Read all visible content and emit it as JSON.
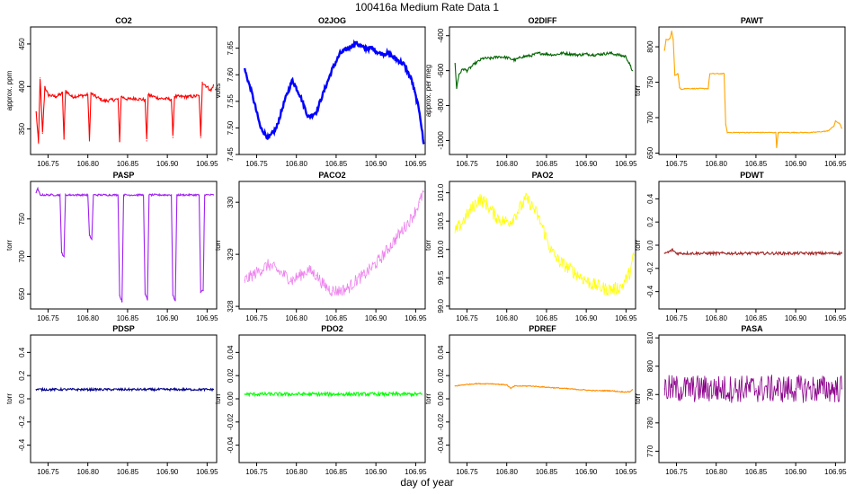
{
  "title": "100416a   Medium Rate Data 1",
  "xlabel": "day of year",
  "chart_data": [
    {
      "type": "line",
      "title": "CO2",
      "ylabel": "approx. ppm",
      "color": "#ff0000",
      "xlim": [
        106.728,
        106.962
      ],
      "ylim": [
        320,
        470
      ],
      "xticks": [
        106.75,
        106.8,
        106.85,
        106.9,
        106.95
      ],
      "yticks": [
        350,
        400,
        450
      ],
      "series": [
        {
          "x": [
            106.735,
            106.738,
            106.74,
            106.743,
            106.746,
            106.75,
            106.76,
            106.768,
            106.77,
            106.772,
            106.78,
            106.8,
            106.802,
            106.804,
            106.81,
            106.82,
            106.838,
            106.84,
            106.842,
            106.85,
            106.86,
            106.872,
            106.874,
            106.876,
            106.89,
            106.905,
            106.907,
            106.909,
            106.93,
            106.94,
            106.942,
            106.944,
            106.955,
            106.958
          ],
          "y": [
            370,
            333,
            410,
            345,
            400,
            390,
            388,
            392,
            338,
            395,
            388,
            390,
            336,
            392,
            388,
            383,
            385,
            336,
            388,
            385,
            386,
            384,
            336,
            390,
            386,
            385,
            340,
            388,
            388,
            389,
            340,
            405,
            395,
            402
          ]
        }
      ]
    },
    {
      "type": "line",
      "title": "O2JOG",
      "ylabel": "volts",
      "color": "#0000ff",
      "xlim": [
        106.728,
        106.962
      ],
      "ylim": [
        7.45,
        7.69
      ],
      "xticks": [
        106.75,
        106.8,
        106.85,
        106.9,
        106.95
      ],
      "yticks": [
        7.45,
        7.5,
        7.55,
        7.6,
        7.65
      ],
      "series": [
        {
          "x": [
            106.735,
            106.745,
            106.755,
            106.765,
            106.775,
            106.785,
            106.795,
            106.805,
            106.815,
            106.825,
            106.835,
            106.845,
            106.855,
            106.865,
            106.875,
            106.885,
            106.895,
            106.905,
            106.915,
            106.925,
            106.935,
            106.945,
            106.955,
            106.96
          ],
          "y": [
            7.61,
            7.56,
            7.5,
            7.48,
            7.5,
            7.55,
            7.59,
            7.56,
            7.52,
            7.53,
            7.57,
            7.61,
            7.64,
            7.65,
            7.66,
            7.65,
            7.65,
            7.64,
            7.64,
            7.63,
            7.62,
            7.59,
            7.53,
            7.47
          ]
        }
      ]
    },
    {
      "type": "line",
      "title": "O2DIFF",
      "ylabel": "approx. per meg",
      "color": "#006400",
      "xlim": [
        106.728,
        106.962
      ],
      "ylim": [
        -1080,
        -350
      ],
      "xticks": [
        106.75,
        106.8,
        106.85,
        106.9,
        106.95
      ],
      "yticks": [
        -1000,
        -800,
        -600,
        -400
      ],
      "series": [
        {
          "x": [
            106.735,
            106.737,
            106.74,
            106.745,
            106.75,
            106.76,
            106.77,
            106.78,
            106.79,
            106.8,
            106.81,
            106.82,
            106.83,
            106.84,
            106.85,
            106.86,
            106.87,
            106.88,
            106.89,
            106.9,
            106.91,
            106.92,
            106.93,
            106.94,
            106.95,
            106.955,
            106.958
          ],
          "y": [
            -560,
            -700,
            -620,
            -590,
            -600,
            -560,
            -530,
            -530,
            -520,
            -525,
            -540,
            -520,
            -515,
            -500,
            -505,
            -510,
            -500,
            -505,
            -510,
            -505,
            -510,
            -505,
            -500,
            -510,
            -520,
            -570,
            -600
          ]
        }
      ]
    },
    {
      "type": "line",
      "title": "PAWT",
      "ylabel": "torr",
      "color": "#ffa500",
      "xlim": [
        106.728,
        106.962
      ],
      "ylim": [
        648,
        828
      ],
      "xticks": [
        106.75,
        106.8,
        106.85,
        106.9,
        106.95
      ],
      "yticks": [
        650,
        700,
        750,
        800
      ],
      "series": [
        {
          "x": [
            106.735,
            106.737,
            106.74,
            106.742,
            106.744,
            106.746,
            106.748,
            106.752,
            106.754,
            106.756,
            106.76,
            106.77,
            106.79,
            106.792,
            106.794,
            106.81,
            106.812,
            106.814,
            106.83,
            106.85,
            106.875,
            106.876,
            106.878,
            106.9,
            106.92,
            106.94,
            106.948,
            106.95,
            106.955,
            106.958
          ],
          "y": [
            795,
            810,
            810,
            812,
            822,
            810,
            760,
            762,
            742,
            740,
            741,
            741,
            741,
            762,
            762,
            762,
            690,
            679,
            679,
            679,
            679,
            658,
            679,
            679,
            679,
            681,
            688,
            695,
            692,
            685
          ]
        }
      ]
    },
    {
      "type": "line",
      "title": "PASP",
      "ylabel": "torr",
      "color": "#a020f0",
      "xlim": [
        106.728,
        106.962
      ],
      "ylim": [
        630,
        800
      ],
      "xticks": [
        106.75,
        106.8,
        106.85,
        106.9,
        106.95
      ],
      "yticks": [
        650,
        700,
        750
      ],
      "series": [
        {
          "x": [
            106.735,
            106.737,
            106.74,
            106.765,
            106.767,
            106.77,
            106.772,
            106.8,
            106.802,
            106.805,
            106.807,
            106.838,
            106.84,
            106.843,
            106.845,
            106.87,
            106.872,
            106.875,
            106.877,
            106.905,
            106.907,
            106.91,
            106.912,
            106.94,
            106.942,
            106.945,
            106.947,
            106.958
          ],
          "y": [
            785,
            790,
            782,
            782,
            705,
            700,
            782,
            782,
            728,
            723,
            782,
            782,
            648,
            640,
            782,
            782,
            650,
            642,
            782,
            782,
            648,
            641,
            782,
            782,
            652,
            655,
            782,
            782
          ]
        }
      ]
    },
    {
      "type": "line",
      "title": "PACO2",
      "ylabel": "torr",
      "color": "#ee82ee",
      "xlim": [
        106.728,
        106.962
      ],
      "ylim": [
        327.95,
        330.4
      ],
      "xticks": [
        106.75,
        106.8,
        106.85,
        106.9,
        106.95
      ],
      "yticks": [
        328.0,
        329.0,
        330.0
      ],
      "series": [
        {
          "x": [
            106.735,
            106.745,
            106.755,
            106.765,
            106.775,
            106.785,
            106.795,
            106.805,
            106.815,
            106.825,
            106.835,
            106.845,
            106.855,
            106.865,
            106.875,
            106.885,
            106.895,
            106.905,
            106.915,
            106.925,
            106.935,
            106.945,
            106.955,
            106.96
          ],
          "y": [
            328.5,
            328.6,
            328.7,
            328.8,
            328.7,
            328.6,
            328.5,
            328.6,
            328.7,
            328.6,
            328.4,
            328.3,
            328.3,
            328.35,
            328.5,
            328.6,
            328.75,
            328.9,
            329.1,
            329.3,
            329.5,
            329.7,
            330.0,
            330.2
          ]
        }
      ]
    },
    {
      "type": "line",
      "title": "PAO2",
      "ylabel": "torr",
      "color": "#ffff00",
      "xlim": [
        106.728,
        106.962
      ],
      "ylim": [
        98.95,
        101.2
      ],
      "xticks": [
        106.75,
        106.8,
        106.85,
        106.9,
        106.95
      ],
      "yticks": [
        99.0,
        99.5,
        100.0,
        100.5,
        101.0
      ],
      "series": [
        {
          "x": [
            106.735,
            106.745,
            106.755,
            106.765,
            106.775,
            106.785,
            106.795,
            106.805,
            106.815,
            106.825,
            106.835,
            106.845,
            106.855,
            106.865,
            106.875,
            106.885,
            106.895,
            106.905,
            106.915,
            106.925,
            106.935,
            106.945,
            106.955,
            106.96
          ],
          "y": [
            100.3,
            100.5,
            100.7,
            100.9,
            100.8,
            100.6,
            100.5,
            100.5,
            100.7,
            100.9,
            100.7,
            100.4,
            100.0,
            99.8,
            99.7,
            99.6,
            99.5,
            99.4,
            99.35,
            99.3,
            99.3,
            99.35,
            99.6,
            99.9
          ]
        }
      ]
    },
    {
      "type": "line",
      "title": "PDWT",
      "ylabel": "torr",
      "color": "#a52a2a",
      "xlim": [
        106.728,
        106.962
      ],
      "ylim": [
        -0.55,
        0.55
      ],
      "xticks": [
        106.75,
        106.8,
        106.85,
        106.9,
        106.95
      ],
      "yticks": [
        -0.4,
        -0.2,
        0.0,
        0.2,
        0.4
      ],
      "series": [
        {
          "x": [
            106.735,
            106.74,
            106.745,
            106.75,
            106.8,
            106.85,
            106.9,
            106.95,
            106.958
          ],
          "y": [
            -0.07,
            -0.06,
            -0.04,
            -0.07,
            -0.07,
            -0.07,
            -0.07,
            -0.07,
            -0.07
          ]
        }
      ]
    },
    {
      "type": "line",
      "title": "PDSP",
      "ylabel": "torr",
      "color": "#00008b",
      "xlim": [
        106.728,
        106.962
      ],
      "ylim": [
        -0.55,
        0.55
      ],
      "xticks": [
        106.75,
        106.8,
        106.85,
        106.9,
        106.95
      ],
      "yticks": [
        -0.4,
        -0.2,
        0.0,
        0.2,
        0.4
      ],
      "series": [
        {
          "x": [
            106.735,
            106.8,
            106.85,
            106.9,
            106.95,
            106.958
          ],
          "y": [
            0.08,
            0.08,
            0.08,
            0.08,
            0.08,
            0.08
          ]
        }
      ]
    },
    {
      "type": "line",
      "title": "PDO2",
      "ylabel": "torr",
      "color": "#00ff00",
      "xlim": [
        106.728,
        106.962
      ],
      "ylim": [
        -0.055,
        0.055
      ],
      "xticks": [
        106.75,
        106.8,
        106.85,
        106.9,
        106.95
      ],
      "yticks": [
        -0.04,
        -0.02,
        0.0,
        0.02,
        0.04
      ],
      "series": [
        {
          "x": [
            106.735,
            106.8,
            106.85,
            106.9,
            106.95,
            106.958
          ],
          "y": [
            0.004,
            0.004,
            0.004,
            0.004,
            0.004,
            0.004
          ]
        }
      ]
    },
    {
      "type": "line",
      "title": "PDREF",
      "ylabel": "torr",
      "color": "#ff8c00",
      "xlim": [
        106.728,
        106.962
      ],
      "ylim": [
        -0.055,
        0.055
      ],
      "xticks": [
        106.75,
        106.8,
        106.85,
        106.9,
        106.95
      ],
      "yticks": [
        -0.04,
        -0.02,
        0.0,
        0.02,
        0.04
      ],
      "series": [
        {
          "x": [
            106.735,
            106.745,
            106.76,
            106.78,
            106.8,
            106.805,
            106.81,
            106.83,
            106.85,
            106.87,
            106.89,
            106.91,
            106.93,
            106.945,
            106.955,
            106.958
          ],
          "y": [
            0.011,
            0.012,
            0.013,
            0.013,
            0.012,
            0.009,
            0.011,
            0.011,
            0.01,
            0.009,
            0.008,
            0.007,
            0.007,
            0.006,
            0.006,
            0.008
          ]
        }
      ]
    },
    {
      "type": "line",
      "title": "PASA",
      "ylabel": "torr",
      "color": "#8b008b",
      "xlim": [
        106.728,
        106.962
      ],
      "ylim": [
        766,
        811
      ],
      "xticks": [
        106.75,
        106.8,
        106.85,
        106.9,
        106.95
      ],
      "yticks": [
        770,
        780,
        790,
        800,
        810
      ],
      "series": [
        {
          "x": [
            106.735,
            106.8,
            106.85,
            106.9,
            106.95,
            106.958
          ],
          "y": [
            792,
            792,
            792,
            792,
            792,
            792
          ]
        }
      ]
    }
  ]
}
